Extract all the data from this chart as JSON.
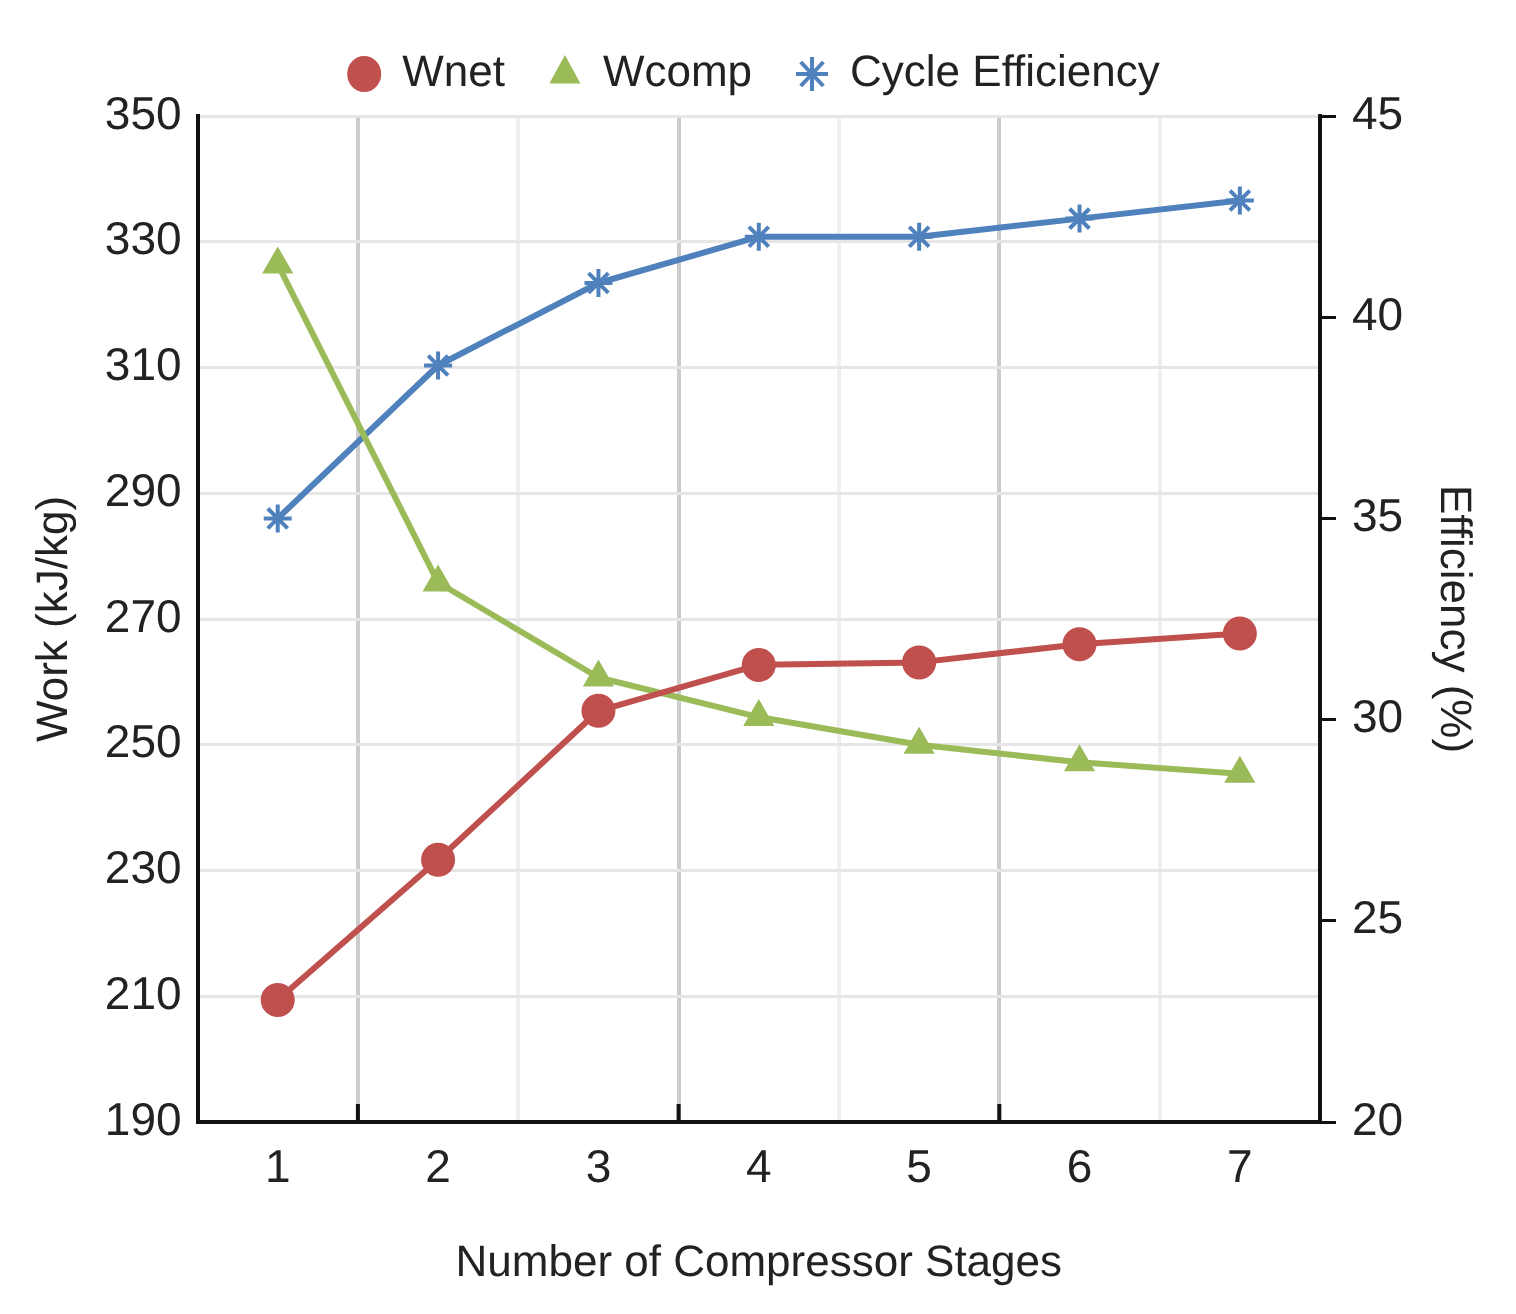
{
  "chart_data": {
    "type": "line",
    "xlabel": "Number of Compressor Stages",
    "ylabel": "Work (kJ/kg)",
    "y2label": "Efficiency (%)",
    "categories": [
      "1",
      "2",
      "3",
      "4",
      "5",
      "6",
      "7"
    ],
    "series": [
      {
        "name": "Wnet",
        "color": "#c0504d",
        "marker": "circle",
        "values": [
          209.4,
          231.7,
          255.4,
          262.7,
          263.1,
          266,
          267.7
        ]
      },
      {
        "name": "Wcomp",
        "color": "#9bbb59",
        "marker": "triangle",
        "values": [
          326.4,
          275.8,
          260.7,
          254.4,
          250,
          247.2,
          245.4
        ]
      },
      {
        "name": "Cycle Efficiency",
        "color": "#4f81bd",
        "marker": "cross",
        "axis": "y2",
        "values": [
          35,
          38.8,
          40.85,
          42,
          42,
          42.45,
          42.9
        ]
      }
    ],
    "ylim": [
      190,
      350
    ],
    "yticks": [
      190,
      210,
      230,
      250,
      270,
      290,
      310,
      330,
      350
    ],
    "y2lim": [
      20,
      45
    ],
    "y2ticks": [
      20,
      25,
      30,
      35,
      40,
      45
    ],
    "grid": true,
    "legend": "top",
    "line_style": "solid"
  }
}
